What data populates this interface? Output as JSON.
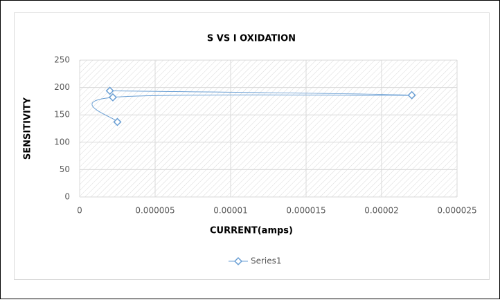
{
  "chart_data": {
    "type": "scatter",
    "title": "S VS I OXIDATION",
    "x_label": "CURRENT(amps)",
    "y_label": "SENSITIVITY",
    "series": [
      {
        "name": "Series1",
        "color": "#6a9fd4",
        "x": [
          2e-06,
          2.2e-05,
          2.2e-06,
          2.5e-06
        ],
        "values": [
          194,
          186,
          182,
          137
        ]
      }
    ],
    "xlim": [
      0,
      2.5e-05
    ],
    "xticks": [
      0,
      {
        "value": 5e-06,
        "label": "0.000005"
      },
      {
        "value": 1e-05,
        "label": "0.00001"
      },
      {
        "value": 1.5e-05,
        "label": "0.000015"
      },
      {
        "value": 2e-05,
        "label": "0.00002"
      },
      {
        "value": 2.5e-05,
        "label": "0.000025"
      }
    ],
    "ylim": [
      0,
      250
    ],
    "yticks": [
      0,
      50,
      100,
      150,
      200,
      250
    ],
    "grid": true,
    "smooth": true,
    "legend": "bottom"
  }
}
